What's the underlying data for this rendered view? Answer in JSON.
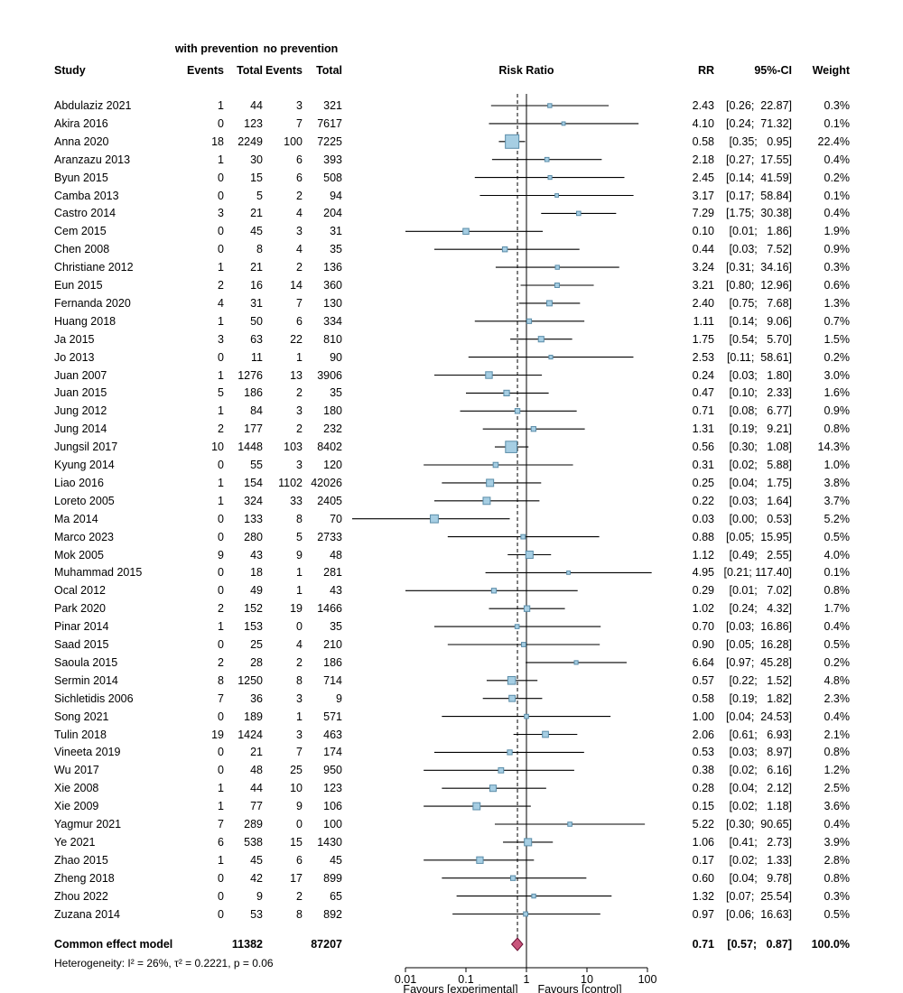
{
  "header": {
    "group1": "with prevention",
    "group2": "no prevention",
    "study": "Study",
    "events": "Events",
    "total": "Total",
    "risk_ratio": "Risk Ratio",
    "rr": "RR",
    "ci": "95%-CI",
    "weight": "Weight"
  },
  "chart_data": {
    "type": "forest",
    "x_scale": "log10",
    "axis": {
      "ticks": [
        0.01,
        0.1,
        1,
        10,
        100
      ],
      "ref_value": 1,
      "pooled_value": 0.71,
      "label_left": "Favours [experimental]",
      "label_right": "Favours [control]"
    },
    "studies_columns": [
      "study",
      "events_with_prevention",
      "total_with_prevention",
      "events_no_prevention",
      "total_no_prevention",
      "rr",
      "ci_low",
      "ci_high",
      "weight_pct"
    ],
    "studies": [
      [
        "Abdulaziz 2021",
        1,
        44,
        3,
        321,
        2.43,
        0.26,
        22.87,
        0.3
      ],
      [
        "Akira 2016",
        0,
        123,
        7,
        7617,
        4.1,
        0.24,
        71.32,
        0.1
      ],
      [
        "Anna 2020",
        18,
        2249,
        100,
        7225,
        0.58,
        0.35,
        0.95,
        22.4
      ],
      [
        "Aranzazu 2013",
        1,
        30,
        6,
        393,
        2.18,
        0.27,
        17.55,
        0.4
      ],
      [
        "Byun 2015",
        0,
        15,
        6,
        508,
        2.45,
        0.14,
        41.59,
        0.2
      ],
      [
        "Camba 2013",
        0,
        5,
        2,
        94,
        3.17,
        0.17,
        58.84,
        0.1
      ],
      [
        "Castro 2014",
        3,
        21,
        4,
        204,
        7.29,
        1.75,
        30.38,
        0.4
      ],
      [
        "Cem 2015",
        0,
        45,
        3,
        31,
        0.1,
        0.01,
        1.86,
        1.9
      ],
      [
        "Chen 2008",
        0,
        8,
        4,
        35,
        0.44,
        0.03,
        7.52,
        0.9
      ],
      [
        "Christiane 2012",
        1,
        21,
        2,
        136,
        3.24,
        0.31,
        34.16,
        0.3
      ],
      [
        "Eun 2015",
        2,
        16,
        14,
        360,
        3.21,
        0.8,
        12.96,
        0.6
      ],
      [
        "Fernanda 2020",
        4,
        31,
        7,
        130,
        2.4,
        0.75,
        7.68,
        1.3
      ],
      [
        "Huang 2018",
        1,
        50,
        6,
        334,
        1.11,
        0.14,
        9.06,
        0.7
      ],
      [
        "Ja 2015",
        3,
        63,
        22,
        810,
        1.75,
        0.54,
        5.7,
        1.5
      ],
      [
        "Jo 2013",
        0,
        11,
        1,
        90,
        2.53,
        0.11,
        58.61,
        0.2
      ],
      [
        "Juan 2007",
        1,
        1276,
        13,
        3906,
        0.24,
        0.03,
        1.8,
        3.0
      ],
      [
        "Juan 2015",
        5,
        186,
        2,
        35,
        0.47,
        0.1,
        2.33,
        1.6
      ],
      [
        "Jung 2012",
        1,
        84,
        3,
        180,
        0.71,
        0.08,
        6.77,
        0.9
      ],
      [
        "Jung 2014",
        2,
        177,
        2,
        232,
        1.31,
        0.19,
        9.21,
        0.8
      ],
      [
        "Jungsil 2017",
        10,
        1448,
        103,
        8402,
        0.56,
        0.3,
        1.08,
        14.3
      ],
      [
        "Kyung 2014",
        0,
        55,
        3,
        120,
        0.31,
        0.02,
        5.88,
        1.0
      ],
      [
        "Liao 2016",
        1,
        154,
        1102,
        42026,
        0.25,
        0.04,
        1.75,
        3.8
      ],
      [
        "Loreto 2005",
        1,
        324,
        33,
        2405,
        0.22,
        0.03,
        1.64,
        3.7
      ],
      [
        "Ma 2014",
        0,
        133,
        8,
        70,
        0.03,
        0.0,
        0.53,
        5.2
      ],
      [
        "Marco 2023",
        0,
        280,
        5,
        2733,
        0.88,
        0.05,
        15.95,
        0.5
      ],
      [
        "Mok 2005",
        9,
        43,
        9,
        48,
        1.12,
        0.49,
        2.55,
        4.0
      ],
      [
        "Muhammad 2015",
        0,
        18,
        1,
        281,
        4.95,
        0.21,
        117.4,
        0.1
      ],
      [
        "Ocal 2012",
        0,
        49,
        1,
        43,
        0.29,
        0.01,
        7.02,
        0.8
      ],
      [
        "Park 2020",
        2,
        152,
        19,
        1466,
        1.02,
        0.24,
        4.32,
        1.7
      ],
      [
        "Pinar 2014",
        1,
        153,
        0,
        35,
        0.7,
        0.03,
        16.86,
        0.4
      ],
      [
        "Saad 2015",
        0,
        25,
        4,
        210,
        0.9,
        0.05,
        16.28,
        0.5
      ],
      [
        "Saoula 2015",
        2,
        28,
        2,
        186,
        6.64,
        0.97,
        45.28,
        0.2
      ],
      [
        "Sermin 2014",
        8,
        1250,
        8,
        714,
        0.57,
        0.22,
        1.52,
        4.8
      ],
      [
        "Sichletidis 2006",
        7,
        36,
        3,
        9,
        0.58,
        0.19,
        1.82,
        2.3
      ],
      [
        "Song 2021",
        0,
        189,
        1,
        571,
        1.0,
        0.04,
        24.53,
        0.4
      ],
      [
        "Tulin 2018",
        19,
        1424,
        3,
        463,
        2.06,
        0.61,
        6.93,
        2.1
      ],
      [
        "Vineeta 2019",
        0,
        21,
        7,
        174,
        0.53,
        0.03,
        8.97,
        0.8
      ],
      [
        "Wu 2017",
        0,
        48,
        25,
        950,
        0.38,
        0.02,
        6.16,
        1.2
      ],
      [
        "Xie 2008",
        1,
        44,
        10,
        123,
        0.28,
        0.04,
        2.12,
        2.5
      ],
      [
        "Xie 2009",
        1,
        77,
        9,
        106,
        0.15,
        0.02,
        1.18,
        3.6
      ],
      [
        "Yagmur 2021",
        7,
        289,
        0,
        100,
        5.22,
        0.3,
        90.65,
        0.4
      ],
      [
        "Ye 2021",
        6,
        538,
        15,
        1430,
        1.06,
        0.41,
        2.73,
        3.9
      ],
      [
        "Zhao 2015",
        1,
        45,
        6,
        45,
        0.17,
        0.02,
        1.33,
        2.8
      ],
      [
        "Zheng 2018",
        0,
        42,
        17,
        899,
        0.6,
        0.04,
        9.78,
        0.8
      ],
      [
        "Zhou 2022",
        0,
        9,
        2,
        65,
        1.32,
        0.07,
        25.54,
        0.3
      ],
      [
        "Zuzana 2014",
        0,
        53,
        8,
        892,
        0.97,
        0.06,
        16.63,
        0.5
      ]
    ],
    "pooled": {
      "label": "Common effect model",
      "total_with_prevention": 11382,
      "total_no_prevention": 87207,
      "rr": 0.71,
      "ci_low": 0.57,
      "ci_high": 0.87,
      "weight_pct": 100.0
    },
    "heterogeneity": "Heterogeneity: I² = 26%, τ² = 0.2221, p = 0.06",
    "colors": {
      "square_fill": "#a6cee3",
      "square_stroke": "#5a8ca8",
      "ci_line": "#000000",
      "diamond_fill": "#c9567c",
      "diamond_stroke": "#6e1236"
    }
  }
}
